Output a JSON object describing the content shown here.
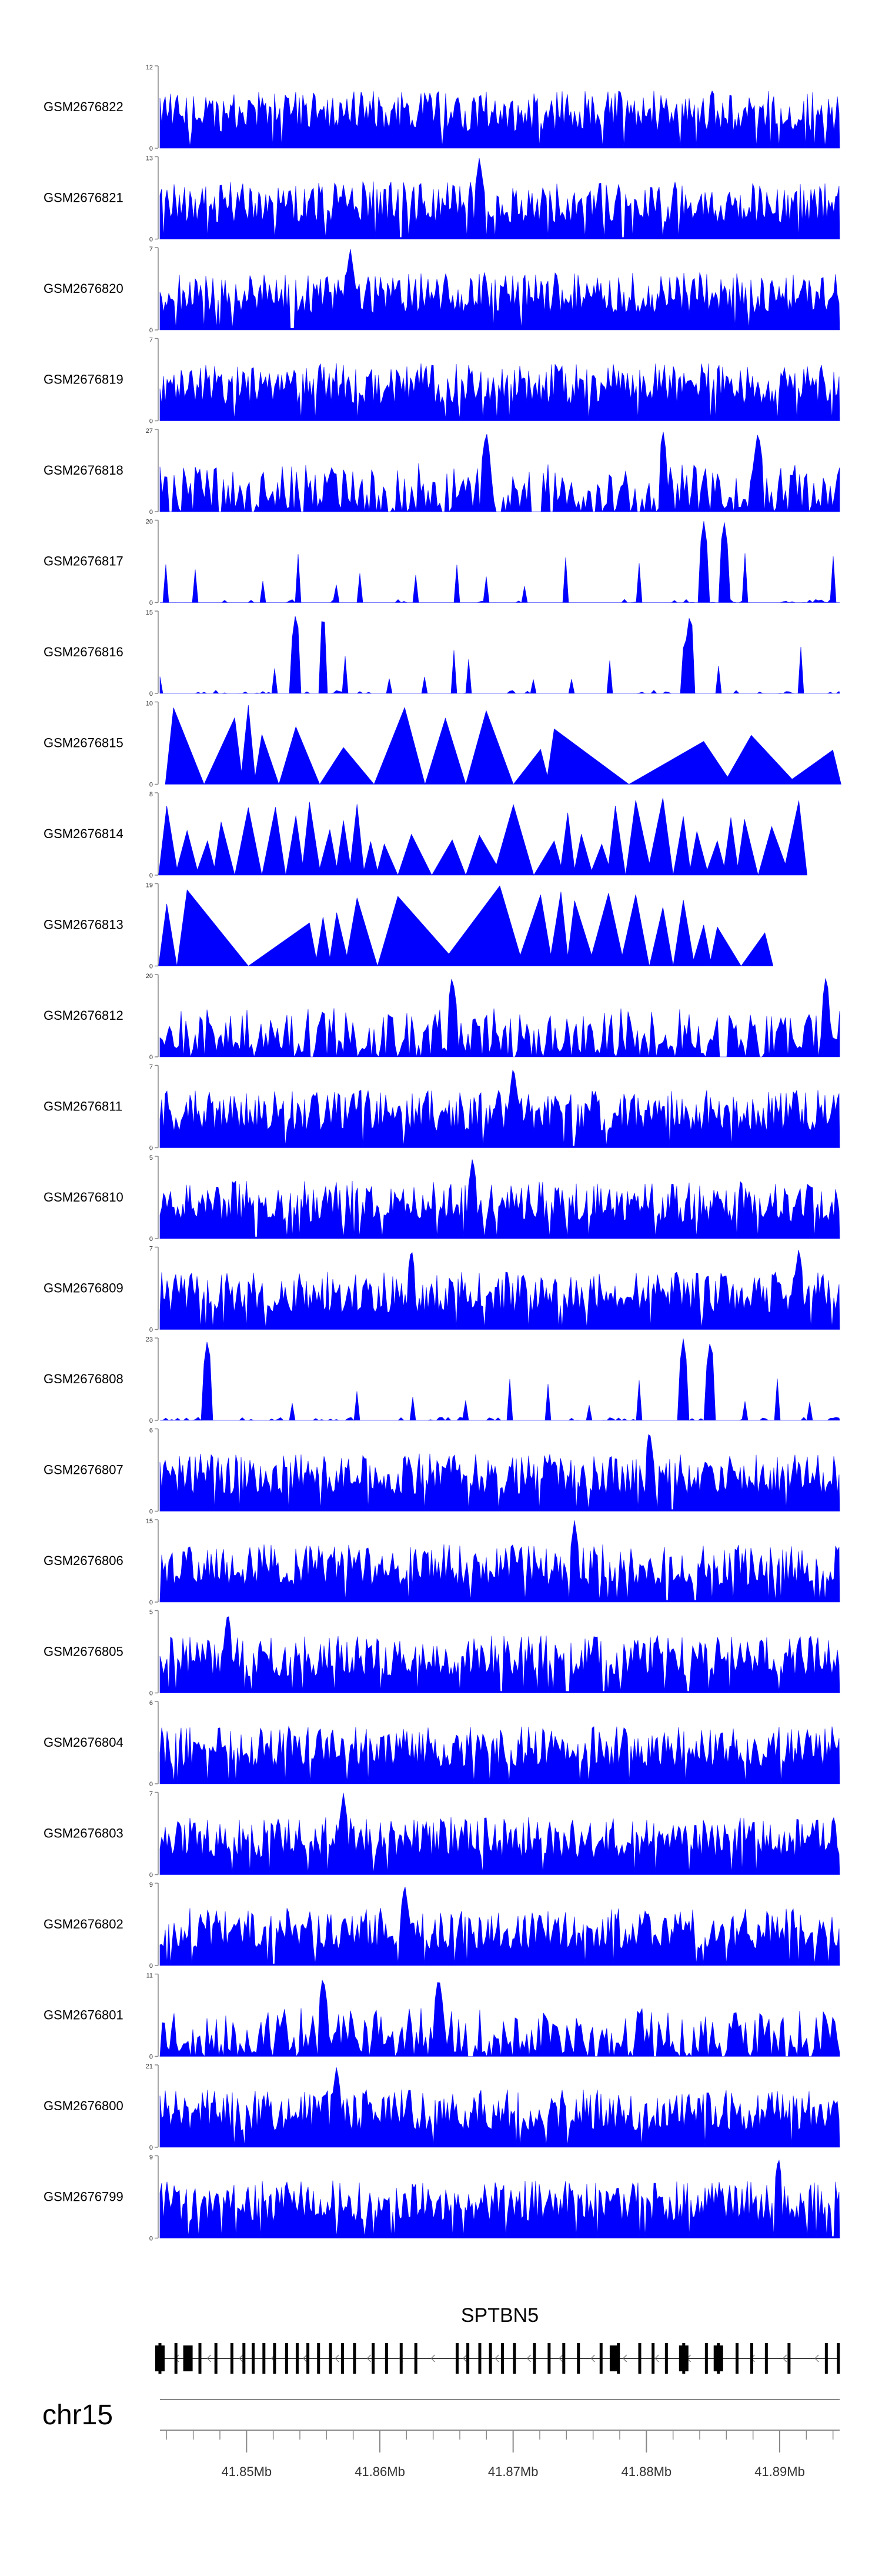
{
  "chart_data": {
    "type": "area",
    "title": "",
    "xlabel": "",
    "ylabel": "",
    "colors": {
      "signal": "#0000ff",
      "axis": "#888888",
      "text": "#000000",
      "gene": "#000000"
    },
    "chromosome": "chr15",
    "xlim_mb": [
      41.8435,
      41.8945
    ],
    "x_ticks": [
      41.85,
      41.86,
      41.87,
      41.88,
      41.89
    ],
    "x_tick_labels": [
      "41.85Mb",
      "41.86Mb",
      "41.87Mb",
      "41.88Mb",
      "41.89Mb"
    ],
    "minor_tick_step_mb": 0.002,
    "series": [
      {
        "name": "GSM2676822",
        "ymax": 12,
        "pattern": "dense",
        "spikes": []
      },
      {
        "name": "GSM2676821",
        "ymax": 13,
        "pattern": "dense",
        "spikes": [
          0.47
        ]
      },
      {
        "name": "GSM2676820",
        "ymax": 7,
        "pattern": "dense",
        "spikes": [
          0.28
        ]
      },
      {
        "name": "GSM2676819",
        "ymax": 7,
        "pattern": "dense",
        "spikes": []
      },
      {
        "name": "GSM2676818",
        "ymax": 27,
        "pattern": "medium",
        "spikes": [
          0.74,
          0.88,
          0.48
        ]
      },
      {
        "name": "GSM2676817",
        "ymax": 20,
        "pattern": "sparse",
        "spikes": [
          0.8,
          0.83
        ]
      },
      {
        "name": "GSM2676816",
        "ymax": 15,
        "pattern": "sparse",
        "spikes": [
          0.24,
          0.78,
          0.2
        ]
      },
      {
        "name": "GSM2676815",
        "ymax": 10,
        "pattern": "triangles",
        "peaks": [
          0.02,
          0.11,
          0.13,
          0.15,
          0.2,
          0.27,
          0.36,
          0.42,
          0.48,
          0.56,
          0.58,
          0.8,
          0.87,
          0.99
        ]
      },
      {
        "name": "GSM2676814",
        "ymax": 8,
        "pattern": "triangles",
        "peaks": [
          0.01,
          0.04,
          0.07,
          0.09,
          0.13,
          0.17,
          0.2,
          0.22,
          0.25,
          0.27,
          0.29,
          0.31,
          0.33,
          0.37,
          0.43,
          0.47,
          0.52,
          0.58,
          0.6,
          0.62,
          0.65,
          0.67,
          0.7,
          0.74,
          0.77,
          0.79,
          0.82,
          0.84,
          0.86,
          0.9,
          0.94
        ]
      },
      {
        "name": "GSM2676813",
        "ymax": 19,
        "pattern": "triangles",
        "peaks": [
          0.01,
          0.04,
          0.22,
          0.24,
          0.26,
          0.29,
          0.35,
          0.5,
          0.56,
          0.59,
          0.61,
          0.66,
          0.7,
          0.74,
          0.77,
          0.8,
          0.82,
          0.89
        ]
      },
      {
        "name": "GSM2676812",
        "ymax": 20,
        "pattern": "medium",
        "spikes": [
          0.43,
          0.98
        ]
      },
      {
        "name": "GSM2676811",
        "ymax": 7,
        "pattern": "dense",
        "spikes": [
          0.52
        ]
      },
      {
        "name": "GSM2676810",
        "ymax": 5,
        "pattern": "dense",
        "spikes": [
          0.46
        ]
      },
      {
        "name": "GSM2676809",
        "ymax": 7,
        "pattern": "dense",
        "spikes": [
          0.37,
          0.94
        ]
      },
      {
        "name": "GSM2676808",
        "ymax": 23,
        "pattern": "sparse",
        "spikes": [
          0.77,
          0.81,
          0.07
        ]
      },
      {
        "name": "GSM2676807",
        "ymax": 6,
        "pattern": "dense",
        "spikes": [
          0.72
        ]
      },
      {
        "name": "GSM2676806",
        "ymax": 15,
        "pattern": "dense",
        "spikes": [
          0.61
        ]
      },
      {
        "name": "GSM2676805",
        "ymax": 5,
        "pattern": "dense",
        "spikes": [
          0.1
        ]
      },
      {
        "name": "GSM2676804",
        "ymax": 6,
        "pattern": "dense",
        "spikes": []
      },
      {
        "name": "GSM2676803",
        "ymax": 7,
        "pattern": "dense",
        "spikes": [
          0.27
        ]
      },
      {
        "name": "GSM2676802",
        "ymax": 9,
        "pattern": "dense",
        "spikes": [
          0.36
        ]
      },
      {
        "name": "GSM2676801",
        "ymax": 11,
        "pattern": "medium",
        "spikes": [
          0.41,
          0.24
        ]
      },
      {
        "name": "GSM2676800",
        "ymax": 21,
        "pattern": "dense",
        "spikes": [
          0.26
        ]
      },
      {
        "name": "GSM2676799",
        "ymax": 9,
        "pattern": "dense",
        "spikes": [
          0.91
        ]
      }
    ],
    "gene": {
      "name": "SPTBN5",
      "strand": "-",
      "start_mb": 41.8435,
      "end_mb": 41.8945,
      "exons_mb": [
        41.8435,
        41.8447,
        41.8465,
        41.8477,
        41.8489,
        41.8498,
        41.8505,
        41.8513,
        41.8521,
        41.853,
        41.8538,
        41.8546,
        41.8554,
        41.8563,
        41.8572,
        41.8581,
        41.8595,
        41.8605,
        41.8616,
        41.8627,
        41.8658,
        41.8666,
        41.8675,
        41.8683,
        41.8692,
        41.8701,
        41.8716,
        41.8727,
        41.8738,
        41.8749,
        41.8766,
        41.8779,
        41.8795,
        41.8805,
        41.8815,
        41.8828,
        41.8845,
        41.8854,
        41.8868,
        41.8879,
        41.889,
        41.8907,
        41.8935,
        41.8944
      ],
      "wide_exons_mb": [
        41.8435,
        41.8456,
        41.8776,
        41.8828,
        41.8854
      ]
    }
  }
}
